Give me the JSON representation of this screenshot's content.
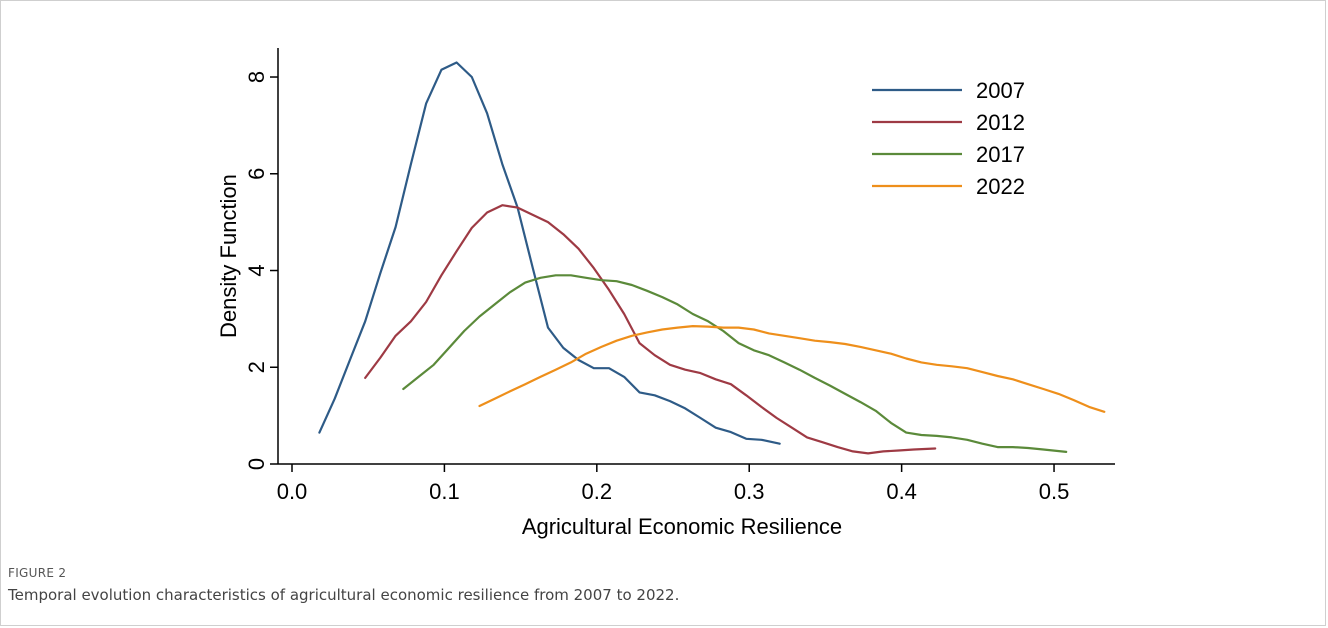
{
  "figure_label": "FIGURE 2",
  "caption": "Temporal evolution characteristics of agricultural economic resilience from 2007 to 2022.",
  "chart_data": {
    "type": "line",
    "title": "",
    "xlabel": "Agricultural Economic Resilience",
    "ylabel": "Density Function",
    "xlim": [
      0.0,
      0.54
    ],
    "ylim": [
      0,
      8.6
    ],
    "xticks": [
      0.0,
      0.1,
      0.2,
      0.3,
      0.4,
      0.5
    ],
    "xtick_labels": [
      "0.0",
      "0.1",
      "0.2",
      "0.3",
      "0.4",
      "0.5"
    ],
    "yticks": [
      0,
      2,
      4,
      6,
      8
    ],
    "ytick_labels": [
      "0",
      "2",
      "4",
      "6",
      "8"
    ],
    "grid": false,
    "legend_position": "top-right",
    "series": [
      {
        "name": "2007",
        "color": "#2e5b87",
        "points": [
          [
            0.018,
            0.65
          ],
          [
            0.028,
            1.35
          ],
          [
            0.038,
            2.15
          ],
          [
            0.048,
            2.95
          ],
          [
            0.058,
            3.95
          ],
          [
            0.068,
            4.9
          ],
          [
            0.078,
            6.2
          ],
          [
            0.088,
            7.45
          ],
          [
            0.098,
            8.15
          ],
          [
            0.108,
            8.3
          ],
          [
            0.118,
            8.0
          ],
          [
            0.128,
            7.25
          ],
          [
            0.138,
            6.2
          ],
          [
            0.148,
            5.3
          ],
          [
            0.158,
            4.05
          ],
          [
            0.168,
            2.82
          ],
          [
            0.178,
            2.4
          ],
          [
            0.188,
            2.15
          ],
          [
            0.198,
            1.98
          ],
          [
            0.208,
            1.98
          ],
          [
            0.218,
            1.8
          ],
          [
            0.228,
            1.48
          ],
          [
            0.238,
            1.42
          ],
          [
            0.248,
            1.3
          ],
          [
            0.258,
            1.15
          ],
          [
            0.268,
            0.95
          ],
          [
            0.278,
            0.75
          ],
          [
            0.288,
            0.66
          ],
          [
            0.298,
            0.52
          ],
          [
            0.308,
            0.5
          ],
          [
            0.32,
            0.42
          ]
        ]
      },
      {
        "name": "2012",
        "color": "#9e3a44",
        "points": [
          [
            0.048,
            1.78
          ],
          [
            0.058,
            2.2
          ],
          [
            0.068,
            2.65
          ],
          [
            0.078,
            2.95
          ],
          [
            0.088,
            3.35
          ],
          [
            0.098,
            3.9
          ],
          [
            0.108,
            4.4
          ],
          [
            0.118,
            4.88
          ],
          [
            0.128,
            5.2
          ],
          [
            0.138,
            5.35
          ],
          [
            0.148,
            5.3
          ],
          [
            0.158,
            5.15
          ],
          [
            0.168,
            5.0
          ],
          [
            0.178,
            4.75
          ],
          [
            0.188,
            4.45
          ],
          [
            0.198,
            4.05
          ],
          [
            0.208,
            3.6
          ],
          [
            0.218,
            3.1
          ],
          [
            0.228,
            2.5
          ],
          [
            0.238,
            2.25
          ],
          [
            0.248,
            2.05
          ],
          [
            0.258,
            1.95
          ],
          [
            0.268,
            1.88
          ],
          [
            0.278,
            1.75
          ],
          [
            0.288,
            1.65
          ],
          [
            0.298,
            1.42
          ],
          [
            0.308,
            1.18
          ],
          [
            0.318,
            0.95
          ],
          [
            0.328,
            0.75
          ],
          [
            0.338,
            0.55
          ],
          [
            0.348,
            0.45
          ],
          [
            0.358,
            0.35
          ],
          [
            0.368,
            0.26
          ],
          [
            0.378,
            0.22
          ],
          [
            0.388,
            0.26
          ],
          [
            0.398,
            0.28
          ],
          [
            0.408,
            0.3
          ],
          [
            0.422,
            0.32
          ]
        ]
      },
      {
        "name": "2017",
        "color": "#5b8a3a",
        "points": [
          [
            0.073,
            1.55
          ],
          [
            0.083,
            1.8
          ],
          [
            0.093,
            2.05
          ],
          [
            0.103,
            2.4
          ],
          [
            0.113,
            2.75
          ],
          [
            0.123,
            3.05
          ],
          [
            0.133,
            3.3
          ],
          [
            0.143,
            3.55
          ],
          [
            0.153,
            3.75
          ],
          [
            0.163,
            3.85
          ],
          [
            0.173,
            3.9
          ],
          [
            0.183,
            3.9
          ],
          [
            0.193,
            3.85
          ],
          [
            0.203,
            3.8
          ],
          [
            0.213,
            3.78
          ],
          [
            0.223,
            3.7
          ],
          [
            0.233,
            3.58
          ],
          [
            0.243,
            3.45
          ],
          [
            0.253,
            3.3
          ],
          [
            0.263,
            3.1
          ],
          [
            0.273,
            2.95
          ],
          [
            0.283,
            2.75
          ],
          [
            0.293,
            2.5
          ],
          [
            0.303,
            2.35
          ],
          [
            0.313,
            2.25
          ],
          [
            0.323,
            2.1
          ],
          [
            0.333,
            1.95
          ],
          [
            0.343,
            1.78
          ],
          [
            0.353,
            1.62
          ],
          [
            0.363,
            1.45
          ],
          [
            0.373,
            1.28
          ],
          [
            0.383,
            1.1
          ],
          [
            0.393,
            0.85
          ],
          [
            0.403,
            0.65
          ],
          [
            0.413,
            0.6
          ],
          [
            0.423,
            0.58
          ],
          [
            0.433,
            0.55
          ],
          [
            0.443,
            0.5
          ],
          [
            0.453,
            0.42
          ],
          [
            0.463,
            0.35
          ],
          [
            0.473,
            0.35
          ],
          [
            0.483,
            0.33
          ],
          [
            0.493,
            0.3
          ],
          [
            0.508,
            0.25
          ]
        ]
      },
      {
        "name": "2022",
        "color": "#ee8f1b",
        "points": [
          [
            0.123,
            1.2
          ],
          [
            0.133,
            1.35
          ],
          [
            0.143,
            1.5
          ],
          [
            0.153,
            1.65
          ],
          [
            0.163,
            1.8
          ],
          [
            0.173,
            1.95
          ],
          [
            0.183,
            2.1
          ],
          [
            0.193,
            2.28
          ],
          [
            0.203,
            2.42
          ],
          [
            0.213,
            2.55
          ],
          [
            0.223,
            2.65
          ],
          [
            0.233,
            2.72
          ],
          [
            0.243,
            2.78
          ],
          [
            0.253,
            2.82
          ],
          [
            0.263,
            2.85
          ],
          [
            0.273,
            2.84
          ],
          [
            0.283,
            2.82
          ],
          [
            0.293,
            2.82
          ],
          [
            0.303,
            2.78
          ],
          [
            0.313,
            2.7
          ],
          [
            0.323,
            2.65
          ],
          [
            0.333,
            2.6
          ],
          [
            0.343,
            2.55
          ],
          [
            0.353,
            2.52
          ],
          [
            0.363,
            2.48
          ],
          [
            0.373,
            2.42
          ],
          [
            0.383,
            2.35
          ],
          [
            0.393,
            2.28
          ],
          [
            0.403,
            2.18
          ],
          [
            0.413,
            2.1
          ],
          [
            0.423,
            2.05
          ],
          [
            0.433,
            2.02
          ],
          [
            0.443,
            1.98
          ],
          [
            0.453,
            1.9
          ],
          [
            0.463,
            1.82
          ],
          [
            0.473,
            1.75
          ],
          [
            0.483,
            1.65
          ],
          [
            0.493,
            1.55
          ],
          [
            0.503,
            1.45
          ],
          [
            0.513,
            1.32
          ],
          [
            0.523,
            1.18
          ],
          [
            0.533,
            1.08
          ]
        ]
      }
    ]
  }
}
